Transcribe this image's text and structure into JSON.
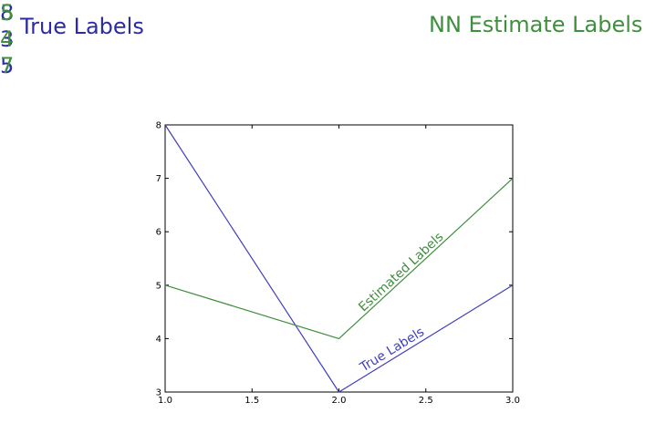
{
  "true_labels": {
    "title": "True Labels",
    "values": [
      "8",
      "3",
      "5"
    ]
  },
  "nn_labels": {
    "title": "NN Estimate Labels",
    "values": [
      "5",
      "4",
      "7"
    ]
  },
  "colors": {
    "true": "#2b2ba8",
    "nn": "#3f8f3f",
    "axis": "#000000"
  },
  "chart_data": {
    "type": "line",
    "x": [
      1.0,
      2.0,
      3.0
    ],
    "xlim": [
      1.0,
      3.0
    ],
    "ylim": [
      3,
      8
    ],
    "xticks": [
      "1.0",
      "1.5",
      "2.0",
      "2.5",
      "3.0"
    ],
    "yticks": [
      "3",
      "4",
      "5",
      "6",
      "7",
      "8"
    ],
    "grid": false,
    "series": [
      {
        "name": "True Labels",
        "values": [
          8,
          3,
          5
        ],
        "color": "#3f3fbf",
        "label": "True Labels"
      },
      {
        "name": "Estimated Labels",
        "values": [
          5,
          4,
          7
        ],
        "color": "#3f8f3f",
        "label": "Estimated Labels"
      }
    ]
  }
}
